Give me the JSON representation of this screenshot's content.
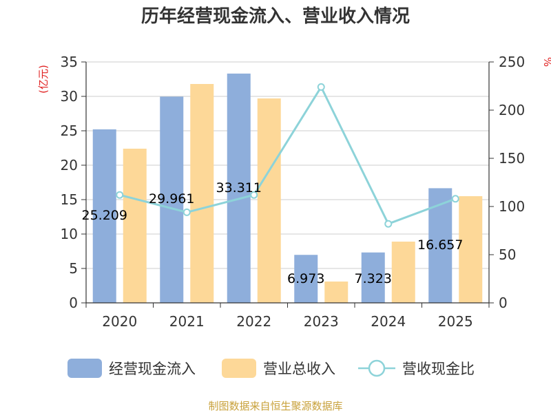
{
  "chart_data": {
    "type": "bar",
    "title": "历年经营现金流入、营业收入情况",
    "categories": [
      "2020",
      "2021",
      "2022",
      "2023",
      "2024",
      "2025"
    ],
    "left_axis": {
      "unit": "(亿元)",
      "ylim": [
        0,
        35
      ],
      "ticks": [
        0,
        5,
        10,
        15,
        20,
        25,
        30,
        35
      ]
    },
    "right_axis": {
      "unit": "%",
      "ylim": [
        0,
        250
      ],
      "ticks": [
        0,
        50,
        100,
        150,
        200,
        250
      ]
    },
    "series": [
      {
        "name": "经营现金流入",
        "type": "bar",
        "axis": "left",
        "color": "#8eaedb",
        "values": [
          25.209,
          29.961,
          33.311,
          6.973,
          7.323,
          16.657
        ],
        "labels": [
          "25.209",
          "29.961",
          "33.311",
          "6.973",
          "7.323",
          "16.657"
        ]
      },
      {
        "name": "营业总收入",
        "type": "bar",
        "axis": "left",
        "color": "#fdd898",
        "values": [
          22.4,
          31.8,
          29.7,
          3.1,
          8.9,
          15.5
        ]
      },
      {
        "name": "营收现金比",
        "type": "line",
        "axis": "right",
        "color": "#8dd3d9",
        "values": [
          112,
          94,
          112,
          224,
          82,
          108
        ]
      }
    ],
    "grid": true,
    "legend_position": "bottom"
  },
  "source": "制图数据来自恒生聚源数据库"
}
